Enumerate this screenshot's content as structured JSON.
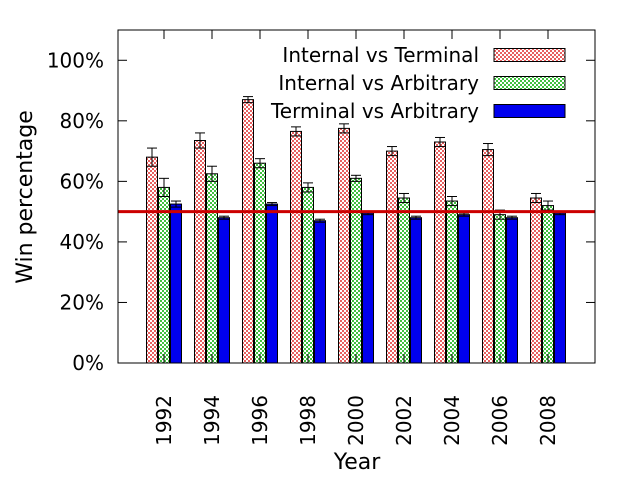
{
  "chart_data": {
    "type": "bar",
    "title": "",
    "xlabel": "Year",
    "ylabel": "Win percentage",
    "ylim": [
      0,
      110
    ],
    "yticks": [
      0,
      20,
      40,
      60,
      80,
      100
    ],
    "ytick_labels": [
      "0%",
      "20%",
      "40%",
      "60%",
      "80%",
      "100%"
    ],
    "categories": [
      "1992",
      "1994",
      "1996",
      "1998",
      "2000",
      "2002",
      "2004",
      "2006",
      "2008"
    ],
    "reference_line": {
      "value": 50,
      "color": "#cc0000"
    },
    "legend_position": "top-right",
    "grid": false,
    "series": [
      {
        "name": "Internal vs Terminal",
        "color": "#e86060",
        "pattern": "red-check",
        "values": [
          68,
          73.5,
          87,
          76.5,
          77.5,
          70,
          73,
          70.5,
          54.5
        ],
        "error": [
          3,
          2.5,
          1,
          1.5,
          1.5,
          1.5,
          1.5,
          2,
          1.5
        ]
      },
      {
        "name": "Internal vs Arbitrary",
        "color": "#40c040",
        "pattern": "green-check",
        "values": [
          58,
          62.5,
          66,
          58,
          61,
          54.5,
          53.5,
          49,
          52
        ],
        "error": [
          3,
          2.5,
          1.5,
          1.5,
          1,
          1.5,
          1.5,
          1.5,
          1.5
        ]
      },
      {
        "name": "Terminal vs Arbitrary",
        "color": "#0000ee",
        "pattern": "solid",
        "values": [
          52.5,
          48,
          52.5,
          47,
          49.5,
          48,
          49,
          48,
          49.5
        ],
        "error": [
          1,
          0.5,
          0.5,
          0.5,
          0.5,
          0.5,
          0.5,
          0.5,
          0.5
        ]
      }
    ]
  }
}
